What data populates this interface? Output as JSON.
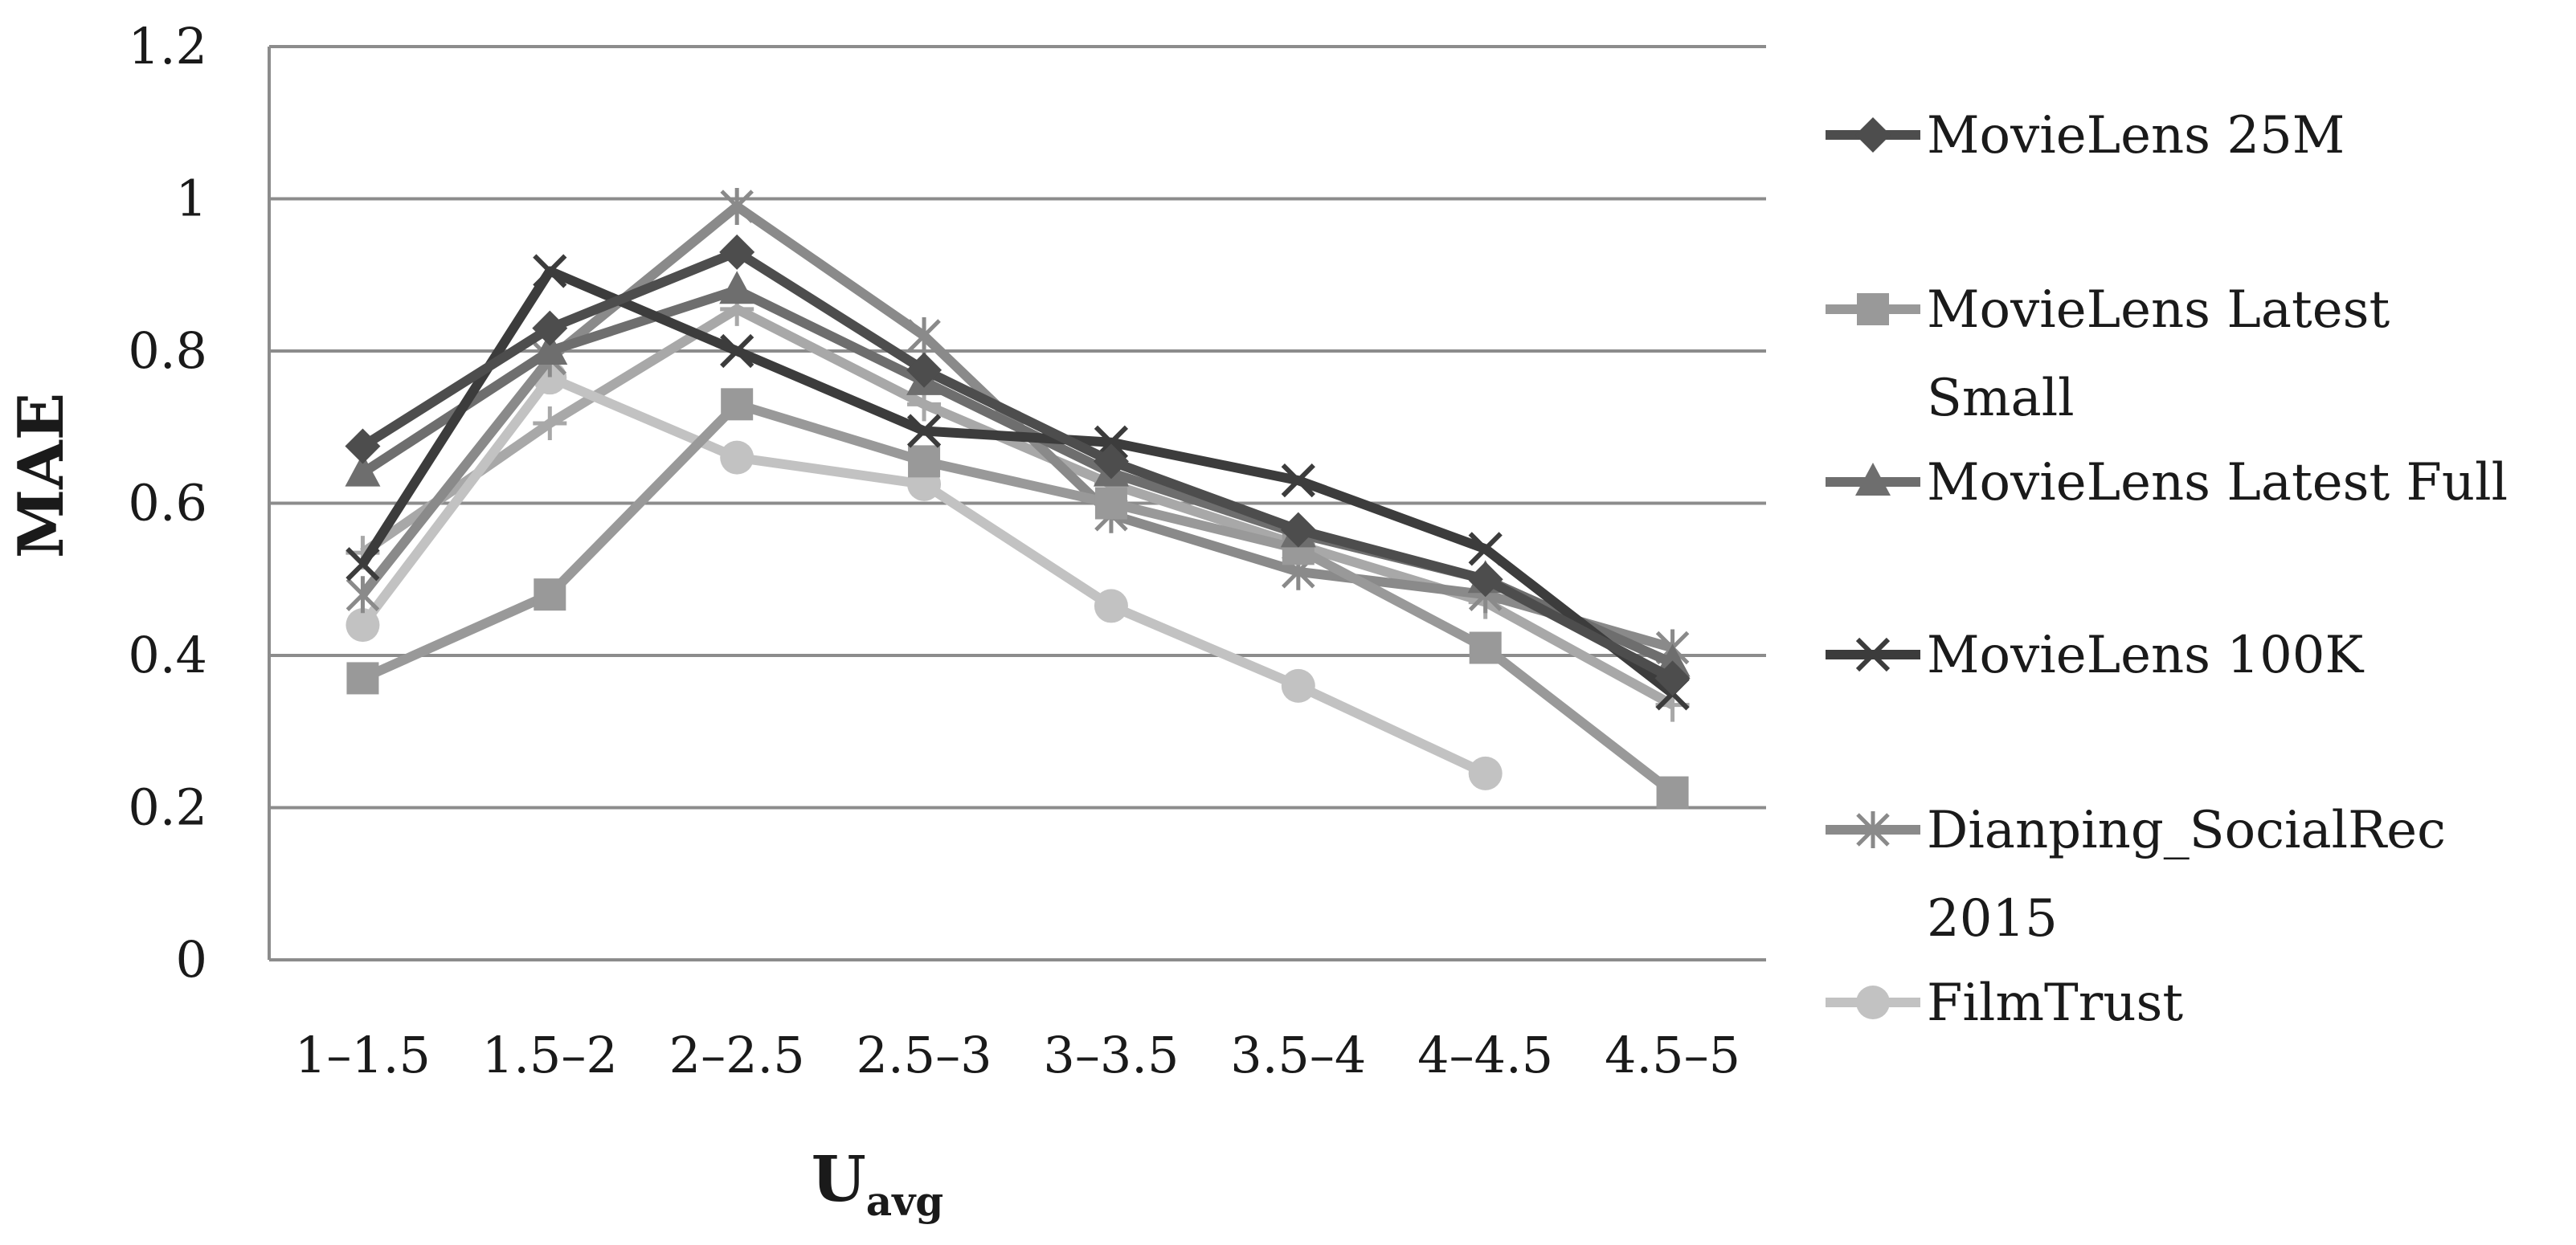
{
  "chart_data": {
    "type": "line",
    "categories": [
      "1–1.5",
      "1.5–2",
      "2–2.5",
      "2.5–3",
      "3–3.5",
      "3.5–4",
      "4–4.5",
      "4.5–5"
    ],
    "ylabel": "MAE",
    "xlabel_main": "U",
    "xlabel_sub": "avg",
    "ylim": [
      0,
      1.2
    ],
    "yticks": [
      "0",
      "0.2",
      "0.4",
      "0.6",
      "0.8",
      "1",
      "1.2"
    ],
    "ytick_values": [
      0,
      0.2,
      0.4,
      0.6,
      0.8,
      1,
      1.2
    ],
    "grid": true,
    "legend_position": "right",
    "series": [
      {
        "name": "MovieLens 25M",
        "legend_lines": [
          "MovieLens 25M"
        ],
        "marker": "diamond",
        "color": "#4d4d4d",
        "values": [
          0.675,
          0.83,
          0.93,
          0.775,
          0.655,
          0.565,
          0.5,
          0.37
        ]
      },
      {
        "name": "MovieLens Latest Small",
        "legend_lines": [
          "MovieLens Latest",
          "Small"
        ],
        "marker": "square",
        "color": "#999999",
        "values": [
          0.37,
          0.48,
          0.73,
          0.655,
          0.6,
          0.54,
          0.41,
          0.22
        ]
      },
      {
        "name": "MovieLens Latest Full",
        "legend_lines": [
          "MovieLens Latest Full"
        ],
        "marker": "triangle",
        "color": "#6e6e6e",
        "values": [
          0.64,
          0.8,
          0.88,
          0.76,
          0.64,
          0.56,
          0.5,
          0.39
        ]
      },
      {
        "name": "MovieLens 100K",
        "legend_lines": [
          "MovieLens 100K"
        ],
        "marker": "x",
        "color": "#3c3c3c",
        "values": [
          0.52,
          0.905,
          0.8,
          0.695,
          0.68,
          0.63,
          0.54,
          0.35
        ]
      },
      {
        "name": "Dianping_SocialRec 2015",
        "legend_lines": [
          "Dianping_SocialRec",
          "2015"
        ],
        "marker": "asterisk",
        "color": "#8a8a8a",
        "values": [
          0.48,
          0.79,
          0.99,
          0.82,
          0.585,
          0.51,
          0.48,
          0.41
        ]
      },
      {
        "name": "FilmTrust",
        "legend_lines": [
          "FilmTrust"
        ],
        "marker": "circle",
        "color": "#c2c2c2",
        "values": [
          0.44,
          0.765,
          0.66,
          0.625,
          0.465,
          0.36,
          0.245,
          null
        ]
      },
      {
        "name": "",
        "legend_lines": [],
        "marker": "plus",
        "color": "#a8a8a8",
        "values": [
          0.535,
          0.705,
          0.855,
          0.73,
          0.625,
          0.545,
          0.47,
          0.335
        ]
      }
    ]
  }
}
